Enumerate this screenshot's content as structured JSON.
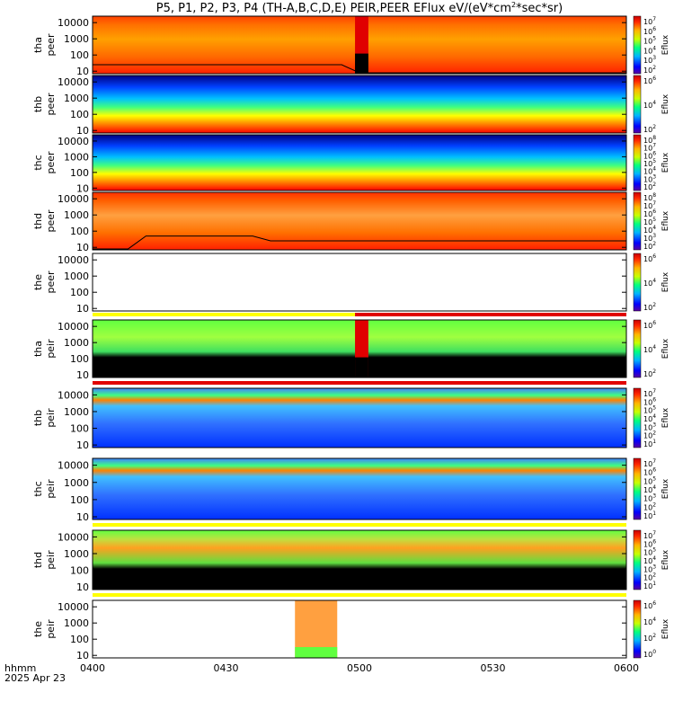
{
  "title": "P5, P1, P2, P3, P4 (TH-A,B,C,D,E) PEIR,PEER EFlux eV/(eV*cm",
  "title_sup": "2",
  "title_tail": "*sec*sr)",
  "colorbar_label": "Eflux",
  "time_axis": {
    "ticks": [
      "0400",
      "0430",
      "0500",
      "0530",
      "0600"
    ],
    "label_line1": "hhmm",
    "label_line2": "2025 Apr 23",
    "range_minutes": [
      0,
      120
    ]
  },
  "chart_data": {
    "type": "heatmap",
    "x_unit": "minutes after 04:00 UT",
    "y_scale": "log",
    "y_ticks": [
      "10",
      "100",
      "1000",
      "10000"
    ],
    "panels": [
      {
        "label1": "tha",
        "label2": "peer",
        "ylim": [
          7,
          25000
        ],
        "cbar_ticks": [
          "10",
          "10",
          "10",
          "10",
          "10",
          "10"
        ],
        "cbar_exp": [
          "7",
          "6",
          "5",
          "4",
          "3",
          "2"
        ],
        "scp_flag": null,
        "gap": [
          59,
          62
        ],
        "style": "warm",
        "line": true
      },
      {
        "label1": "thb",
        "label2": "peer",
        "ylim": [
          7,
          25000
        ],
        "cbar_ticks": [
          "10",
          "10",
          "10"
        ],
        "cbar_exp": [
          "6",
          "4",
          "2"
        ],
        "scp_flag": null,
        "gap": null,
        "style": "band",
        "line": false
      },
      {
        "label1": "thc",
        "label2": "peer",
        "ylim": [
          7,
          25000
        ],
        "cbar_ticks": [
          "10",
          "10",
          "10",
          "10",
          "10",
          "10",
          "10"
        ],
        "cbar_exp": [
          "8",
          "7",
          "6",
          "5",
          "4",
          "3",
          "2"
        ],
        "scp_flag": null,
        "gap": null,
        "style": "band",
        "line": false
      },
      {
        "label1": "thd",
        "label2": "peer",
        "ylim": [
          7,
          25000
        ],
        "cbar_ticks": [
          "10",
          "10",
          "10",
          "10",
          "10",
          "10",
          "10"
        ],
        "cbar_exp": [
          "8",
          "7",
          "6",
          "5",
          "4",
          "3",
          "2"
        ],
        "scp_flag": null,
        "gap": null,
        "style": "warm2",
        "line": true
      },
      {
        "label1": "the",
        "label2": "peer",
        "ylim": [
          7,
          25000
        ],
        "cbar_ticks": [
          "10",
          "10",
          "10"
        ],
        "cbar_exp": [
          "6",
          "4",
          "2"
        ],
        "scp_flag": "yellow-red",
        "gap": null,
        "style": "empty",
        "line": false
      },
      {
        "label1": "tha",
        "label2": "peir",
        "ylim": [
          7,
          25000
        ],
        "cbar_ticks": [
          "10",
          "10",
          "10"
        ],
        "cbar_exp": [
          "6",
          "4",
          "2"
        ],
        "scp_flag": "red",
        "gap": [
          59,
          62
        ],
        "style": "ion1",
        "line": false
      },
      {
        "label1": "thb",
        "label2": "peir",
        "ylim": [
          7,
          25000
        ],
        "cbar_ticks": [
          "10",
          "10",
          "10",
          "10",
          "10",
          "10",
          "10"
        ],
        "cbar_exp": [
          "7",
          "6",
          "5",
          "4",
          "3",
          "2",
          "1"
        ],
        "scp_flag": "red",
        "gap": null,
        "style": "ion2",
        "line": false
      },
      {
        "label1": "thc",
        "label2": "peir",
        "ylim": [
          7,
          25000
        ],
        "cbar_ticks": [
          "10",
          "10",
          "10",
          "10",
          "10",
          "10",
          "10"
        ],
        "cbar_exp": [
          "7",
          "6",
          "5",
          "4",
          "3",
          "2",
          "1"
        ],
        "scp_flag": "yellow",
        "gap": null,
        "style": "ion2",
        "line": false
      },
      {
        "label1": "thd",
        "label2": "peir",
        "ylim": [
          7,
          25000
        ],
        "cbar_ticks": [
          "10",
          "10",
          "10",
          "10",
          "10",
          "10",
          "10"
        ],
        "cbar_exp": [
          "7",
          "6",
          "5",
          "4",
          "3",
          "2",
          "1"
        ],
        "scp_flag": "yellow",
        "gap": null,
        "style": "ion4",
        "line": false
      },
      {
        "label1": "the",
        "label2": "peir",
        "ylim": [
          7,
          25000
        ],
        "cbar_ticks": [
          "10",
          "10",
          "10",
          "10"
        ],
        "cbar_exp": [
          "6",
          "4",
          "2",
          "0"
        ],
        "scp_flag": null,
        "gap": null,
        "style": "ion5",
        "line": false
      }
    ]
  }
}
